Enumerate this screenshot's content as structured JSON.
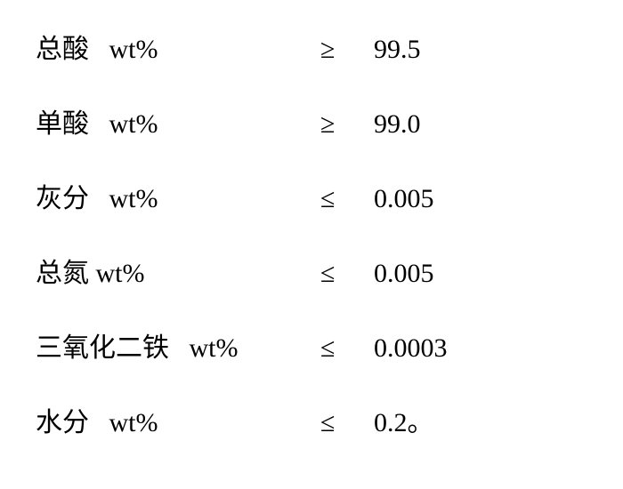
{
  "specifications": {
    "rows": [
      {
        "label": "总酸   wt%",
        "operator": "≥",
        "value": "99.5"
      },
      {
        "label": "单酸   wt%",
        "operator": "≥",
        "value": "99.0"
      },
      {
        "label": "灰分   wt%",
        "operator": "≤",
        "value": "0.005"
      },
      {
        "label": "总氮 wt%",
        "operator": "≤",
        "value": "0.005"
      },
      {
        "label": "三氧化二铁   wt%",
        "operator": "≤",
        "value": " 0.0003"
      },
      {
        "label": "水分   wt%",
        "operator": "≤",
        "value": " 0.2。"
      }
    ]
  },
  "styling": {
    "background_color": "#ffffff",
    "text_color": "#000000",
    "font_family": "SimSun",
    "font_size": 30,
    "row_spacing": 40,
    "label_width": 320,
    "operator_width": 60
  }
}
